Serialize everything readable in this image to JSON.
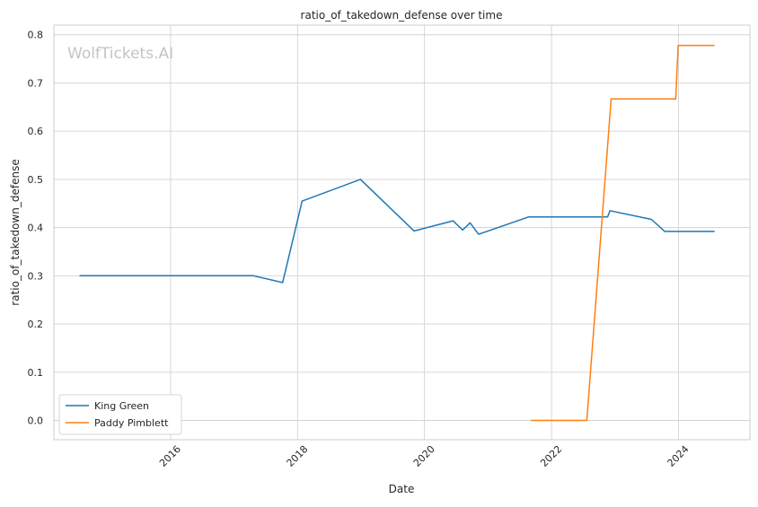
{
  "watermark": "WolfTickets.AI",
  "chart_data": {
    "type": "line",
    "title": "ratio_of_takedown_defense over time",
    "xlabel": "Date",
    "ylabel": "ratio_of_takedown_defense",
    "x_axis_type": "date",
    "xlim": [
      "2014-03-01",
      "2025-02-15"
    ],
    "ylim": [
      -0.04,
      0.82
    ],
    "x_ticks": [
      "2016",
      "2018",
      "2020",
      "2022",
      "2024"
    ],
    "y_ticks": [
      "0.0",
      "0.1",
      "0.2",
      "0.3",
      "0.4",
      "0.5",
      "0.6",
      "0.7",
      "0.8"
    ],
    "grid": true,
    "legend_position": "lower-left",
    "series": [
      {
        "name": "King Green",
        "color": "#1f77b4",
        "points": [
          {
            "x": "2014-07-26",
            "y": 0.3
          },
          {
            "x": "2017-04-22",
            "y": 0.3
          },
          {
            "x": "2017-10-07",
            "y": 0.286
          },
          {
            "x": "2018-01-27",
            "y": 0.455
          },
          {
            "x": "2018-12-29",
            "y": 0.5
          },
          {
            "x": "2019-11-02",
            "y": 0.393
          },
          {
            "x": "2020-06-13",
            "y": 0.414
          },
          {
            "x": "2020-08-08",
            "y": 0.395
          },
          {
            "x": "2020-09-19",
            "y": 0.41
          },
          {
            "x": "2020-11-07",
            "y": 0.386
          },
          {
            "x": "2021-08-21",
            "y": 0.422
          },
          {
            "x": "2022-11-19",
            "y": 0.422
          },
          {
            "x": "2022-12-03",
            "y": 0.435
          },
          {
            "x": "2023-07-29",
            "y": 0.417
          },
          {
            "x": "2023-10-14",
            "y": 0.392
          },
          {
            "x": "2024-07-27",
            "y": 0.392
          }
        ]
      },
      {
        "name": "Paddy Pimblett",
        "color": "#ff7f0e",
        "points": [
          {
            "x": "2021-09-04",
            "y": 0.0
          },
          {
            "x": "2022-07-23",
            "y": 0.0
          },
          {
            "x": "2022-12-10",
            "y": 0.667
          },
          {
            "x": "2023-12-16",
            "y": 0.667
          },
          {
            "x": "2023-12-30",
            "y": 0.778
          },
          {
            "x": "2024-07-27",
            "y": 0.778
          }
        ]
      }
    ]
  }
}
